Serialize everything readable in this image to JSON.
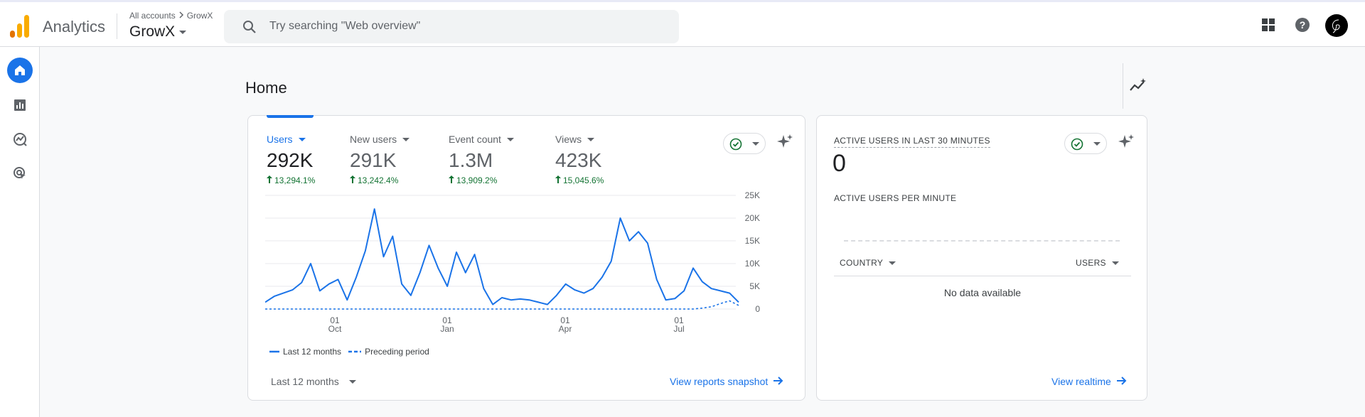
{
  "app": {
    "name": "Analytics",
    "breadcrumb_root": "All accounts",
    "breadcrumb_account": "GrowX",
    "property": "GrowX"
  },
  "search": {
    "placeholder": "Try searching \"Web overview\""
  },
  "page": {
    "title": "Home"
  },
  "brand_colors": {
    "accent": "#1a73e8",
    "positive": "#137333",
    "logo_orange": "#f9ab00",
    "logo_dark_orange": "#e37400"
  },
  "metrics": [
    {
      "label": "Users",
      "value": "292K",
      "change": "13,294.1%"
    },
    {
      "label": "New users",
      "value": "291K",
      "change": "13,242.4%"
    },
    {
      "label": "Event count",
      "value": "1.3M",
      "change": "13,909.2%"
    },
    {
      "label": "Views",
      "value": "423K",
      "change": "15,045.6%"
    }
  ],
  "chart_data": {
    "type": "line",
    "title": "",
    "xlabel": "",
    "ylabel": "",
    "x_ticks": [
      {
        "day": "01",
        "month": "Oct"
      },
      {
        "day": "01",
        "month": "Jan"
      },
      {
        "day": "01",
        "month": "Apr"
      },
      {
        "day": "01",
        "month": "Jul"
      }
    ],
    "y_ticks": [
      "25K",
      "20K",
      "15K",
      "10K",
      "5K",
      "0"
    ],
    "ylim": [
      0,
      25000
    ],
    "y_axis_position": "right",
    "grid": true,
    "legend_position": "bottom-left",
    "series": [
      {
        "name": "Last 12 months",
        "style": "solid",
        "color": "#1a73e8",
        "values": [
          1500,
          2800,
          3500,
          4200,
          5800,
          10000,
          4000,
          5500,
          6500,
          2000,
          7000,
          12800,
          22000,
          11500,
          16000,
          5500,
          3000,
          8000,
          14000,
          9000,
          5000,
          12500,
          8000,
          12000,
          4500,
          1000,
          2500,
          2000,
          2200,
          2000,
          1500,
          1000,
          3000,
          5500,
          4200,
          3500,
          4500,
          7000,
          10500,
          20000,
          15000,
          17000,
          14500,
          6500,
          2000,
          2300,
          4000,
          9000,
          6000,
          4500,
          4000,
          3500,
          1500
        ]
      },
      {
        "name": "Preceding period",
        "style": "dashed",
        "color": "#1a73e8",
        "values": [
          0,
          0,
          0,
          0,
          0,
          0,
          0,
          0,
          0,
          0,
          0,
          0,
          0,
          0,
          0,
          0,
          0,
          0,
          0,
          0,
          0,
          0,
          0,
          0,
          0,
          0,
          0,
          0,
          0,
          0,
          0,
          0,
          0,
          0,
          0,
          0,
          0,
          0,
          0,
          0,
          0,
          0,
          0,
          0,
          0,
          0,
          0,
          0,
          200,
          500,
          1200,
          1800,
          800
        ]
      }
    ]
  },
  "date_range": {
    "label": "Last 12 months"
  },
  "links": {
    "reports_snapshot": "View reports snapshot",
    "realtime": "View realtime"
  },
  "realtime": {
    "title": "ACTIVE USERS IN LAST 30 MINUTES",
    "value": "0",
    "per_minute": "ACTIVE USERS PER MINUTE",
    "col_country": "COUNTRY",
    "col_users": "USERS",
    "empty": "No data available"
  },
  "icons": {
    "search": "search-icon",
    "apps": "apps-grid-icon",
    "help": "help-icon",
    "avatar": "user-avatar",
    "home": "home-icon",
    "reports": "reports-icon",
    "explore": "explore-icon",
    "advertising": "advertising-icon",
    "insights": "insights-icon",
    "check": "check-circle-icon",
    "sparkle": "sparkle-icon",
    "arrow": "arrow-right-icon"
  }
}
